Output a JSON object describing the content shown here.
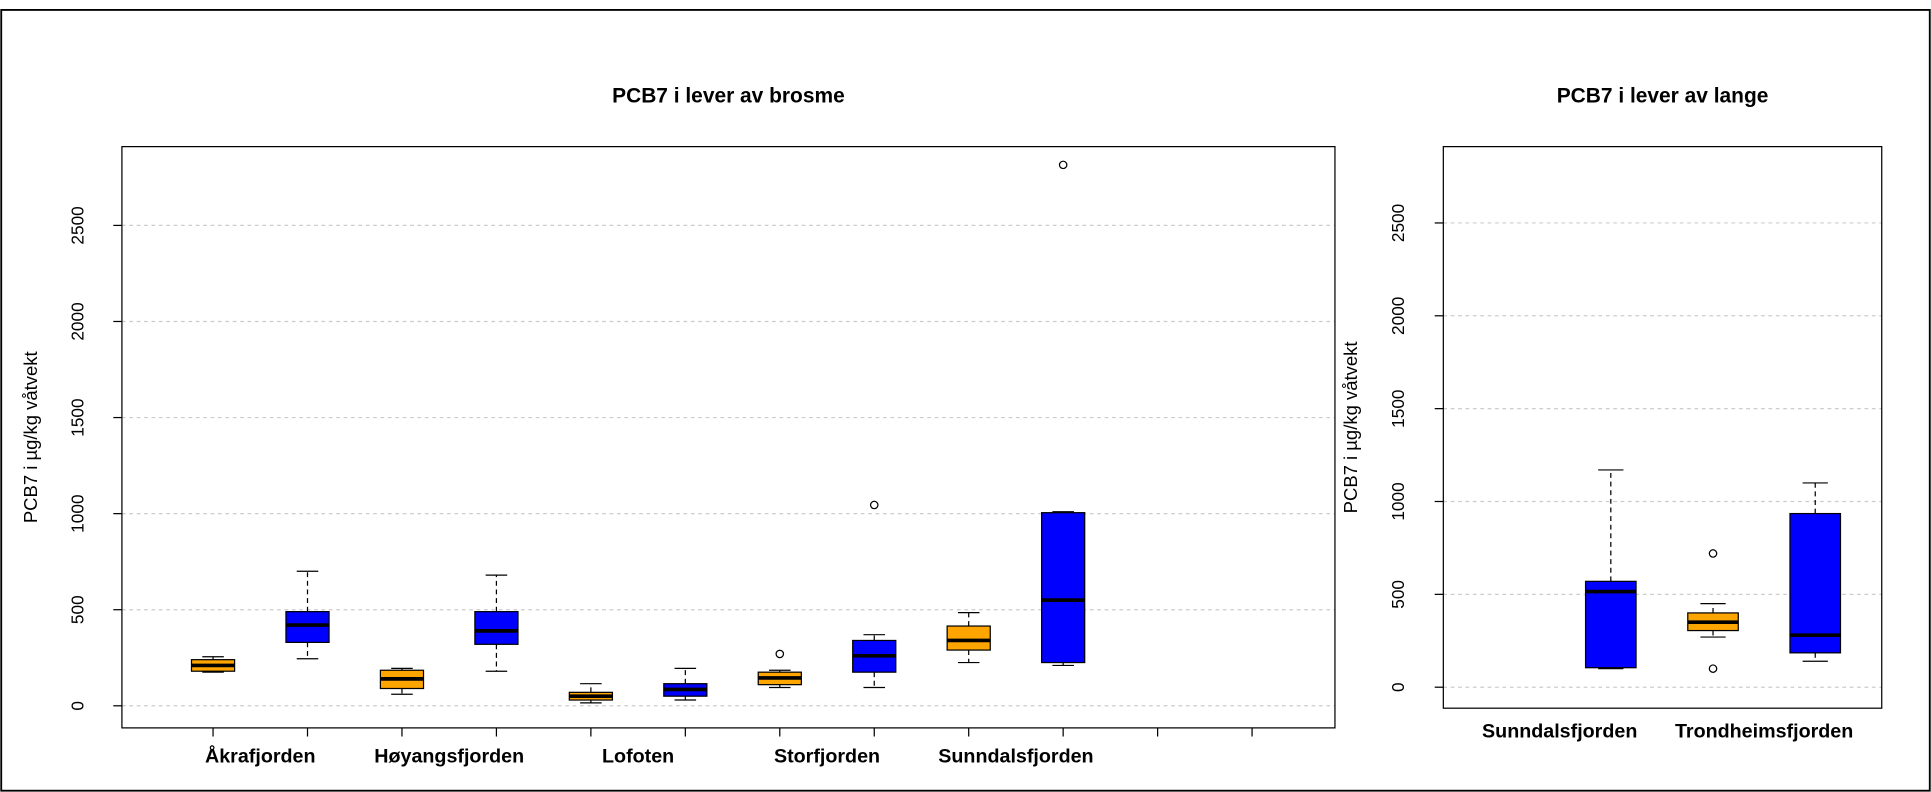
{
  "chart_data": [
    {
      "type": "boxplot",
      "title": "PCB7 i lever av brosme",
      "y_label": "PCB7 i µg/kg våtvekt",
      "categories": [
        "Åkrafjorden",
        "Høyangsfjorden",
        "Lofoten",
        "Storfjorden",
        "Sunndalsfjorden"
      ],
      "ylim": [
        -115,
        2910
      ],
      "yticks": [
        0,
        500,
        1000,
        1500,
        2000,
        2500
      ],
      "grid": true,
      "series": [
        {
          "color": "#FFA500",
          "boxes": [
            {
              "min": 175,
              "q1": 180,
              "median": 210,
              "q3": 240,
              "max": 255,
              "outliers": []
            },
            {
              "min": 60,
              "q1": 90,
              "median": 140,
              "q3": 185,
              "max": 195,
              "outliers": []
            },
            {
              "min": 15,
              "q1": 30,
              "median": 50,
              "q3": 70,
              "max": 115,
              "outliers": []
            },
            {
              "min": 95,
              "q1": 110,
              "median": 145,
              "q3": 175,
              "max": 185,
              "outliers": [
                270
              ]
            },
            {
              "min": 225,
              "q1": 290,
              "median": 340,
              "q3": 415,
              "max": 485,
              "outliers": []
            }
          ]
        },
        {
          "color": "#0000FF",
          "boxes": [
            {
              "min": 245,
              "q1": 330,
              "median": 420,
              "q3": 490,
              "max": 700,
              "outliers": []
            },
            {
              "min": 180,
              "q1": 320,
              "median": 390,
              "q3": 490,
              "max": 680,
              "outliers": []
            },
            {
              "min": 30,
              "q1": 50,
              "median": 85,
              "q3": 115,
              "max": 195,
              "outliers": []
            },
            {
              "min": 95,
              "q1": 175,
              "median": 260,
              "q3": 340,
              "max": 370,
              "outliers": [
                1045
              ]
            },
            {
              "min": 210,
              "q1": 225,
              "median": 550,
              "q3": 1005,
              "max": 1010,
              "outliers": [
                2815
              ]
            }
          ]
        }
      ]
    },
    {
      "type": "boxplot",
      "title": "PCB7 i lever av lange",
      "y_label": "PCB7 i µg/kg våtvekt",
      "categories": [
        "Sunndalsfjorden",
        "Trondheimsfjorden"
      ],
      "ylim": [
        -113,
        2911
      ],
      "yticks": [
        0,
        500,
        1000,
        1500,
        2000,
        2500
      ],
      "grid": true,
      "series": [
        {
          "color": "#FFA500",
          "boxes": [
            null,
            {
              "min": 270,
              "q1": 305,
              "median": 350,
              "q3": 400,
              "max": 450,
              "outliers": [
                720,
                100
              ]
            }
          ]
        },
        {
          "color": "#0000FF",
          "boxes": [
            {
              "min": 100,
              "q1": 105,
              "median": 515,
              "q3": 570,
              "max": 1170,
              "outliers": []
            },
            {
              "min": 140,
              "q1": 185,
              "median": 280,
              "q3": 935,
              "max": 1100,
              "outliers": []
            }
          ]
        }
      ]
    }
  ]
}
